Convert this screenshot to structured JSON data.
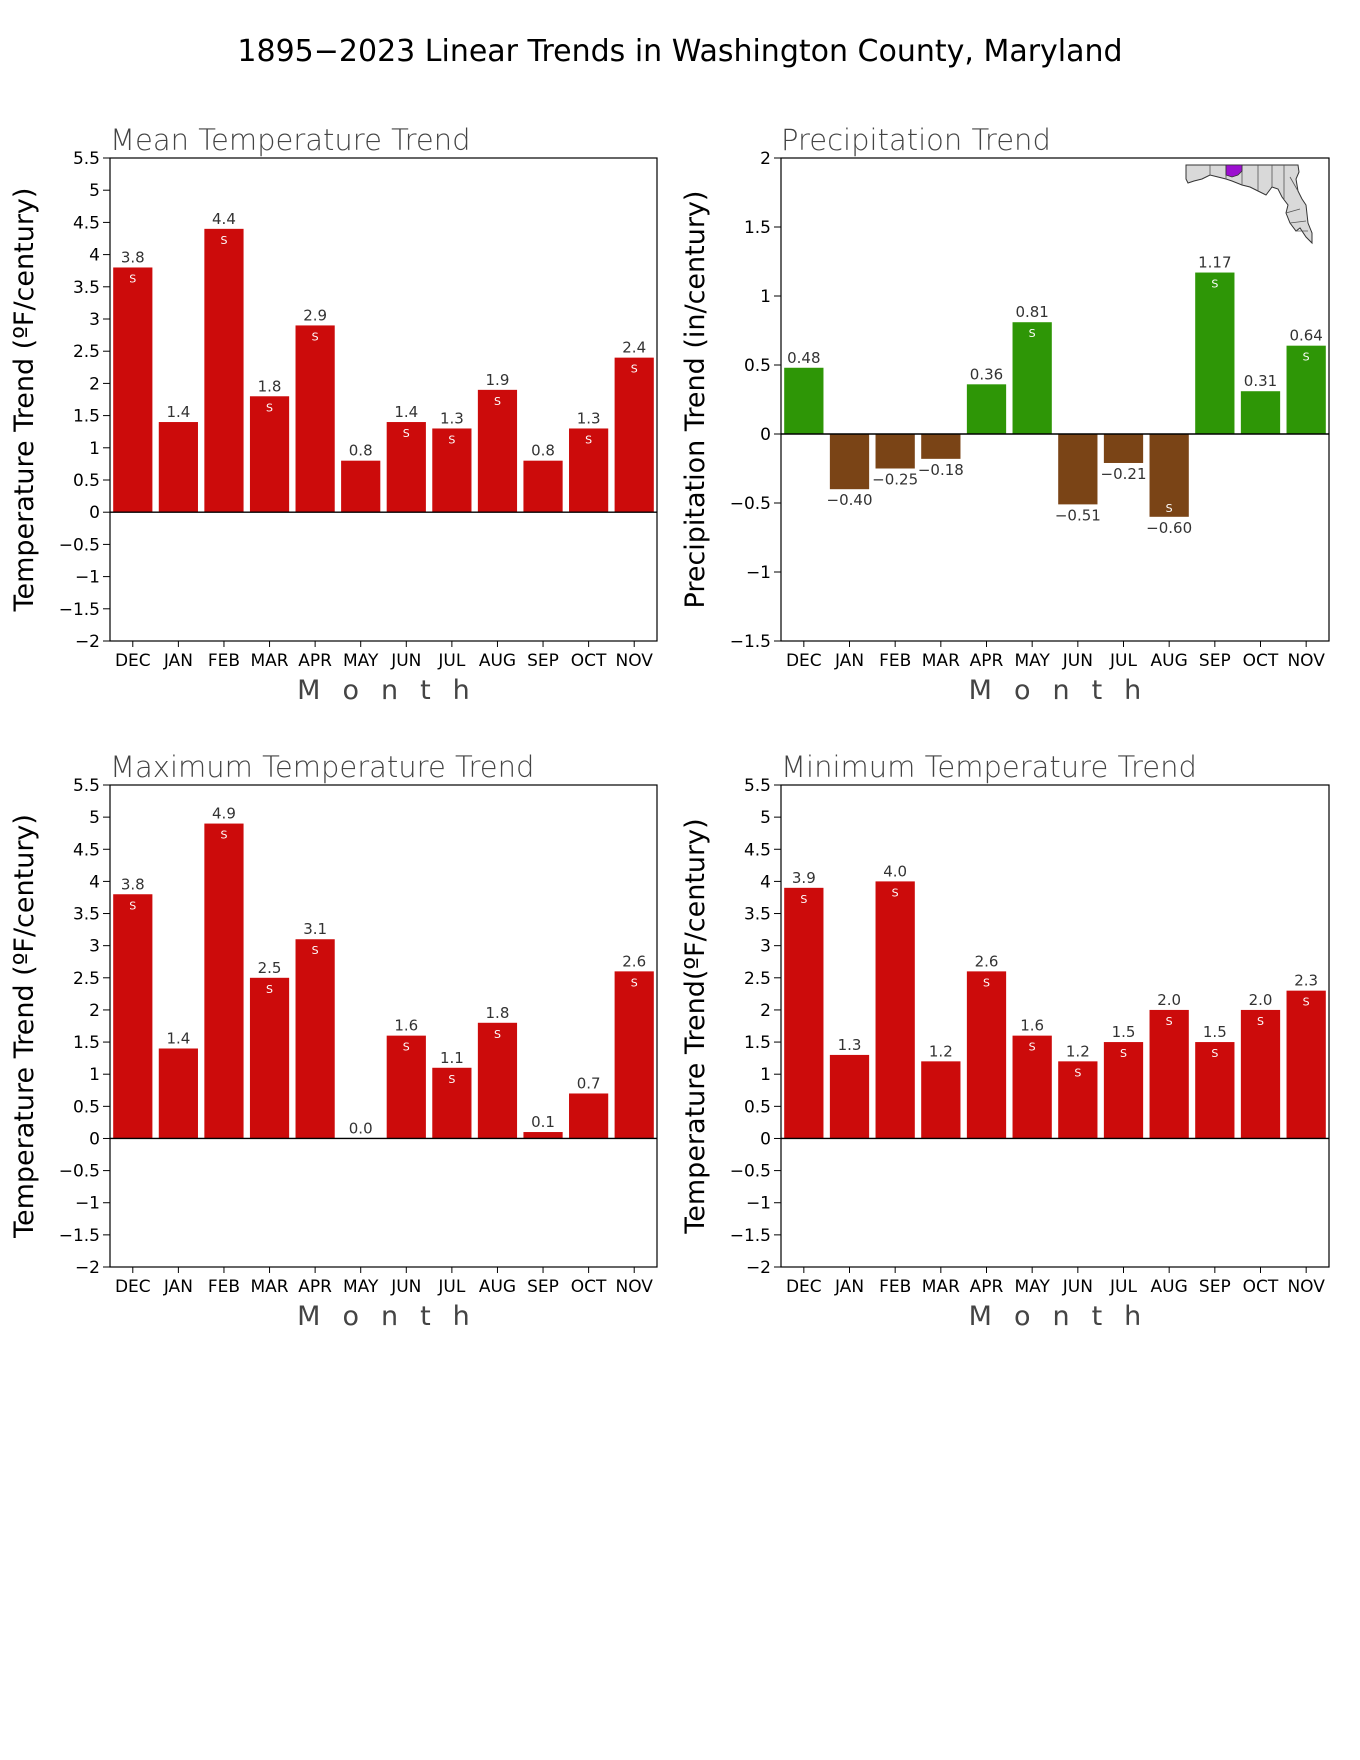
{
  "figure_title": "1895−2023 Linear Trends in Washington County, Maryland",
  "colors": {
    "temperature_bar": "#cc0b0b",
    "precip_positive": "#2e9606",
    "precip_negative": "#7a4416",
    "frame": "#000000",
    "map_highlight": "#9c0fd0",
    "map_fill": "#d9d9d9"
  },
  "map_icon": "maryland-locator-map-icon",
  "chart_data": [
    {
      "id": "mean-temperature",
      "type": "bar",
      "title": "Mean Temperature Trend",
      "ylabel": "Temperature Trend (ºF/century)",
      "xlabel": "Month",
      "categories": [
        "DEC",
        "JAN",
        "FEB",
        "MAR",
        "APR",
        "MAY",
        "JUN",
        "JUL",
        "AUG",
        "SEP",
        "OCT",
        "NOV"
      ],
      "values": [
        3.8,
        1.4,
        4.4,
        1.8,
        2.9,
        0.8,
        1.4,
        1.3,
        1.9,
        0.8,
        1.3,
        2.4
      ],
      "value_labels": [
        "3.8",
        "1.4",
        "4.4",
        "1.8",
        "2.9",
        "0.8",
        "1.4",
        "1.3",
        "1.9",
        "0.8",
        "1.3",
        "2.4"
      ],
      "significant": [
        true,
        false,
        true,
        true,
        true,
        false,
        true,
        true,
        true,
        false,
        true,
        true
      ],
      "ylim": [
        -2,
        5.5
      ],
      "yticks": [
        5.5,
        5,
        4.5,
        4,
        3.5,
        3,
        2.5,
        2,
        1.5,
        1,
        0.5,
        0,
        -0.5,
        -1,
        -1.5,
        -2
      ],
      "ytick_labels": [
        "5.5",
        "5",
        "4.5",
        "4",
        "3.5",
        "3",
        "2.5",
        "2",
        "1.5",
        "1",
        "0.5",
        "0",
        "−0.5",
        "−1",
        "−1.5",
        "−2"
      ],
      "significance_marker": "S"
    },
    {
      "id": "precipitation",
      "type": "bar",
      "title": "Precipitation Trend",
      "ylabel": "Precipitation Trend (in/century)",
      "xlabel": "Month",
      "categories": [
        "DEC",
        "JAN",
        "FEB",
        "MAR",
        "APR",
        "MAY",
        "JUN",
        "JUL",
        "AUG",
        "SEP",
        "OCT",
        "NOV"
      ],
      "values": [
        0.48,
        -0.4,
        -0.25,
        -0.18,
        0.36,
        0.81,
        -0.51,
        -0.21,
        -0.6,
        1.17,
        0.31,
        0.64
      ],
      "value_labels": [
        "0.48",
        "−0.40",
        "−0.25",
        "−0.18",
        "0.36",
        "0.81",
        "−0.51",
        "−0.21",
        "−0.60",
        "1.17",
        "0.31",
        "0.64"
      ],
      "significant": [
        false,
        false,
        false,
        false,
        false,
        true,
        false,
        false,
        true,
        true,
        false,
        true
      ],
      "ylim": [
        -1.5,
        2
      ],
      "yticks": [
        2,
        1.5,
        1,
        0.5,
        0,
        -0.5,
        -1,
        -1.5
      ],
      "ytick_labels": [
        "2",
        "1.5",
        "1",
        "0.5",
        "0",
        "−0.5",
        "−1",
        "−1.5"
      ],
      "significance_marker": "S"
    },
    {
      "id": "maximum-temperature",
      "type": "bar",
      "title": "Maximum Temperature Trend",
      "ylabel": "Temperature Trend (ºF/century)",
      "xlabel": "Month",
      "categories": [
        "DEC",
        "JAN",
        "FEB",
        "MAR",
        "APR",
        "MAY",
        "JUN",
        "JUL",
        "AUG",
        "SEP",
        "OCT",
        "NOV"
      ],
      "values": [
        3.8,
        1.4,
        4.9,
        2.5,
        3.1,
        0.0,
        1.6,
        1.1,
        1.8,
        0.1,
        0.7,
        2.6
      ],
      "value_labels": [
        "3.8",
        "1.4",
        "4.9",
        "2.5",
        "3.1",
        "0.0",
        "1.6",
        "1.1",
        "1.8",
        "0.1",
        "0.7",
        "2.6"
      ],
      "significant": [
        true,
        false,
        true,
        true,
        true,
        false,
        true,
        true,
        true,
        false,
        false,
        true
      ],
      "ylim": [
        -2,
        5.5
      ],
      "yticks": [
        5.5,
        5,
        4.5,
        4,
        3.5,
        3,
        2.5,
        2,
        1.5,
        1,
        0.5,
        0,
        -0.5,
        -1,
        -1.5,
        -2
      ],
      "ytick_labels": [
        "5.5",
        "5",
        "4.5",
        "4",
        "3.5",
        "3",
        "2.5",
        "2",
        "1.5",
        "1",
        "0.5",
        "0",
        "−0.5",
        "−1",
        "−1.5",
        "−2"
      ],
      "significance_marker": "S"
    },
    {
      "id": "minimum-temperature",
      "type": "bar",
      "title": "Minimum Temperature Trend",
      "ylabel": "Temperature Trend(ºF/century)",
      "xlabel": "Month",
      "categories": [
        "DEC",
        "JAN",
        "FEB",
        "MAR",
        "APR",
        "MAY",
        "JUN",
        "JUL",
        "AUG",
        "SEP",
        "OCT",
        "NOV"
      ],
      "values": [
        3.9,
        1.3,
        4.0,
        1.2,
        2.6,
        1.6,
        1.2,
        1.5,
        2.0,
        1.5,
        2.0,
        2.3
      ],
      "value_labels": [
        "3.9",
        "1.3",
        "4.0",
        "1.2",
        "2.6",
        "1.6",
        "1.2",
        "1.5",
        "2.0",
        "1.5",
        "2.0",
        "2.3"
      ],
      "significant": [
        true,
        false,
        true,
        false,
        true,
        true,
        true,
        true,
        true,
        true,
        true,
        true
      ],
      "ylim": [
        -2,
        5.5
      ],
      "yticks": [
        5.5,
        5,
        4.5,
        4,
        3.5,
        3,
        2.5,
        2,
        1.5,
        1,
        0.5,
        0,
        -0.5,
        -1,
        -1.5,
        -2
      ],
      "ytick_labels": [
        "5.5",
        "5",
        "4.5",
        "4",
        "3.5",
        "3",
        "2.5",
        "2",
        "1.5",
        "1",
        "0.5",
        "0",
        "−0.5",
        "−1",
        "−1.5",
        "−2"
      ],
      "significance_marker": "S"
    }
  ]
}
